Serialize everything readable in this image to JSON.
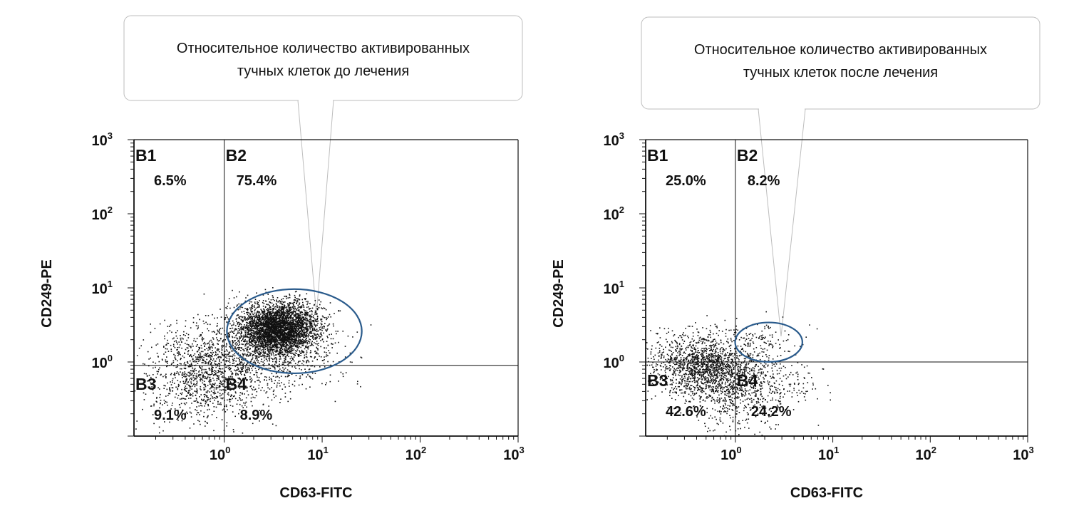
{
  "chart_data": [
    {
      "type": "scatter",
      "callout": [
        "Относительное количество активированных",
        "тучных клеток до лечения"
      ],
      "xlabel": "CD63-FITC",
      "ylabel": "CD249-PE",
      "x_scale": "log",
      "y_scale": "log",
      "xlim": [
        0.12,
        1000
      ],
      "ylim": [
        0.1,
        1000
      ],
      "x_ticks": [
        {
          "base": "10",
          "exp": "0"
        },
        {
          "base": "10",
          "exp": "1"
        },
        {
          "base": "10",
          "exp": "2"
        },
        {
          "base": "10",
          "exp": "3"
        }
      ],
      "y_ticks": [
        {
          "base": "10",
          "exp": "0"
        },
        {
          "base": "10",
          "exp": "1"
        },
        {
          "base": "10",
          "exp": "2"
        },
        {
          "base": "10",
          "exp": "3"
        }
      ],
      "gate": {
        "x": 1.0,
        "y": 0.9
      },
      "quadrants": [
        {
          "name": "B1",
          "value": "6.5%"
        },
        {
          "name": "B2",
          "value": "75.4%"
        },
        {
          "name": "B3",
          "value": "9.1%"
        },
        {
          "name": "B4",
          "value": "8.9%"
        }
      ],
      "ellipse": {
        "cx": 5.2,
        "cy": 2.6,
        "x_range": [
          1.05,
          25
        ],
        "y_range": [
          0.68,
          9.3
        ]
      },
      "clusters": [
        {
          "cx": 3.6,
          "cy": 2.8,
          "sx": 0.2,
          "sy": 0.17,
          "n": 3600
        },
        {
          "cx": 2.5,
          "cy": 1.3,
          "sx": 0.4,
          "sy": 0.3,
          "n": 900
        },
        {
          "cx": 0.7,
          "cy": 0.7,
          "sx": 0.28,
          "sy": 0.3,
          "n": 900
        },
        {
          "cx": 0.4,
          "cy": 0.5,
          "sx": 0.4,
          "sy": 0.35,
          "n": 250
        }
      ],
      "colors": {
        "dot": "#111111",
        "ellipse": "#2a5b8c",
        "axis": "#111111",
        "callout": "#bdbdbd"
      }
    },
    {
      "type": "scatter",
      "callout": [
        "Относительное количество активированных",
        "тучных клеток после лечения"
      ],
      "xlabel": "CD63-FITC",
      "ylabel": "CD249-PE",
      "x_scale": "log",
      "y_scale": "log",
      "xlim": [
        0.12,
        1000
      ],
      "ylim": [
        0.1,
        1000
      ],
      "x_ticks": [
        {
          "base": "10",
          "exp": "0"
        },
        {
          "base": "10",
          "exp": "1"
        },
        {
          "base": "10",
          "exp": "2"
        },
        {
          "base": "10",
          "exp": "3"
        }
      ],
      "y_ticks": [
        {
          "base": "10",
          "exp": "0"
        },
        {
          "base": "10",
          "exp": "1"
        },
        {
          "base": "10",
          "exp": "2"
        },
        {
          "base": "10",
          "exp": "3"
        }
      ],
      "gate": {
        "x": 1.0,
        "y": 1.0
      },
      "quadrants": [
        {
          "name": "B1",
          "value": "25.0%"
        },
        {
          "name": "B2",
          "value": "8.2%"
        },
        {
          "name": "B3",
          "value": "42.6%"
        },
        {
          "name": "B4",
          "value": "24.2%"
        }
      ],
      "ellipse": {
        "cx": 2.2,
        "cy": 1.85,
        "x_range": [
          1.02,
          5.0
        ],
        "y_range": [
          1.0,
          3.4
        ]
      },
      "clusters": [
        {
          "cx": 0.45,
          "cy": 0.85,
          "sx": 0.26,
          "sy": 0.2,
          "n": 1400
        },
        {
          "cx": 0.9,
          "cy": 0.45,
          "sx": 0.2,
          "sy": 0.3,
          "n": 500
        },
        {
          "cx": 2.0,
          "cy": 0.55,
          "sx": 0.25,
          "sy": 0.25,
          "n": 320
        },
        {
          "cx": 1.8,
          "cy": 2.0,
          "sx": 0.15,
          "sy": 0.12,
          "n": 80
        },
        {
          "cx": 0.4,
          "cy": 2.2,
          "sx": 0.3,
          "sy": 0.1,
          "n": 70
        }
      ],
      "colors": {
        "dot": "#111111",
        "ellipse": "#2a5b8c",
        "axis": "#111111",
        "callout": "#bdbdbd"
      }
    }
  ]
}
